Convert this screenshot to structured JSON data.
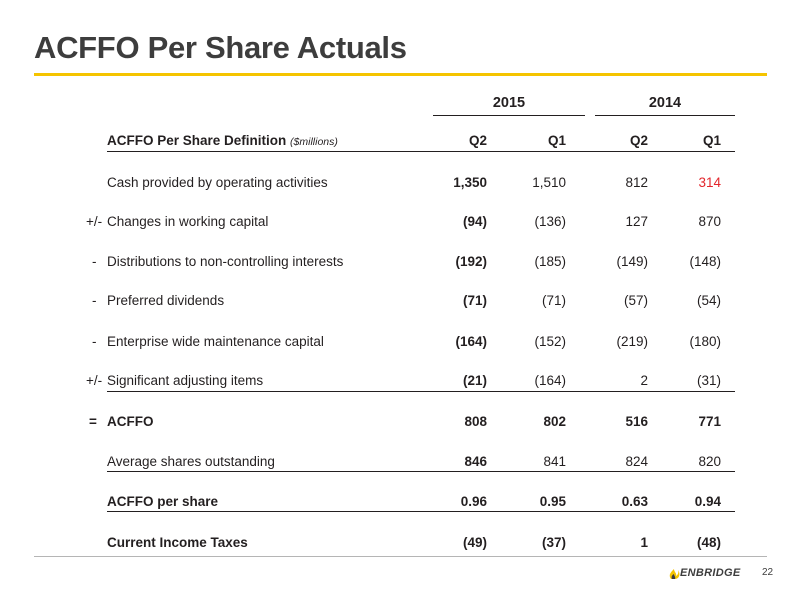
{
  "title": "ACFFO Per Share Actuals",
  "years": [
    "2015",
    "2014"
  ],
  "header": {
    "label": "ACFFO Per Share Definition",
    "unit": "($millions)",
    "quarters": [
      "Q2",
      "Q1",
      "Q2",
      "Q1"
    ]
  },
  "rows": [
    {
      "prefix": "",
      "label": "Cash provided by operating activities",
      "values": [
        "1,350",
        "1,510",
        "812",
        "314"
      ]
    },
    {
      "prefix": "+/-",
      "label": "Changes in working capital",
      "values": [
        "(94)",
        "(136)",
        "127",
        "870"
      ]
    },
    {
      "prefix": "-",
      "label": "Distributions to non-controlling interests",
      "values": [
        "(192)",
        "(185)",
        "(149)",
        "(148)"
      ]
    },
    {
      "prefix": "-",
      "label": "Preferred dividends",
      "values": [
        "(71)",
        "(71)",
        "(57)",
        "(54)"
      ]
    },
    {
      "prefix": "-",
      "label": "Enterprise wide maintenance capital",
      "values": [
        "(164)",
        "(152)",
        "(219)",
        "(180)"
      ]
    },
    {
      "prefix": "+/-",
      "label": "Significant adjusting items",
      "values": [
        "(21)",
        "(164)",
        "2",
        "(31)"
      ]
    },
    {
      "prefix": "=",
      "label": "ACFFO",
      "values": [
        "808",
        "802",
        "516",
        "771"
      ]
    },
    {
      "prefix": "",
      "label": "Average shares outstanding",
      "values": [
        "846",
        "841",
        "824",
        "820"
      ]
    },
    {
      "prefix": "",
      "label": "ACFFO per share",
      "values": [
        "0.96",
        "0.95",
        "0.63",
        "0.94"
      ]
    },
    {
      "prefix": "",
      "label": "Current Income Taxes",
      "values": [
        "(49)",
        "(37)",
        "1",
        "(48)"
      ]
    }
  ],
  "highlight_color": "#e3262c",
  "accent_color": "#f5c400",
  "logo_text": "ENBRIDGE",
  "page_number": "22"
}
